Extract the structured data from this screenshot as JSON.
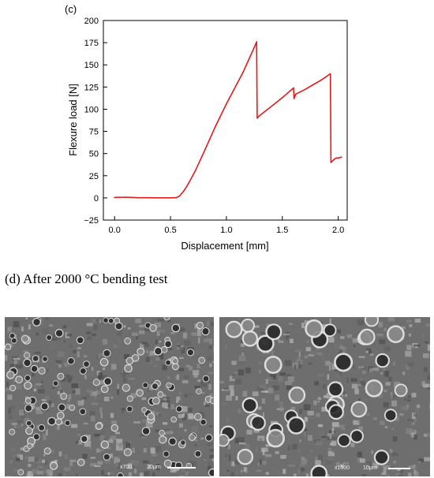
{
  "panel_c": {
    "label": "(c)"
  },
  "panel_d": {
    "caption": "(d) After 2000 °C bending test",
    "images": [
      {
        "magnification": "x700",
        "scale": "20μm"
      },
      {
        "magnification": "x1500",
        "scale": "10μm"
      }
    ]
  },
  "chart_data": {
    "type": "line",
    "title": "",
    "xlabel": "Displacement [mm]",
    "ylabel": "Flexure load [N]",
    "xlim": [
      -0.1,
      2.08
    ],
    "ylim": [
      -25,
      200
    ],
    "xticks": [
      0.0,
      0.5,
      1.0,
      1.5,
      2.0
    ],
    "xtick_labels": [
      "0.0",
      "0.5",
      "1.0",
      "1.5",
      "2.0"
    ],
    "yticks": [
      -25,
      0,
      25,
      50,
      75,
      100,
      125,
      150,
      175,
      200
    ],
    "ytick_labels": [
      "−25",
      "0",
      "25",
      "50",
      "75",
      "100",
      "125",
      "150",
      "175",
      "200"
    ],
    "grid": false,
    "legend": "none",
    "series": [
      {
        "color": "#e31a1c",
        "points": [
          [
            0.0,
            0.5
          ],
          [
            0.1,
            0.8
          ],
          [
            0.2,
            0.3
          ],
          [
            0.3,
            0.2
          ],
          [
            0.4,
            0.1
          ],
          [
            0.5,
            0.1
          ],
          [
            0.55,
            0.3
          ],
          [
            0.58,
            2
          ],
          [
            0.62,
            8
          ],
          [
            0.66,
            16
          ],
          [
            0.72,
            30
          ],
          [
            0.8,
            52
          ],
          [
            0.9,
            80
          ],
          [
            1.0,
            106
          ],
          [
            1.1,
            130
          ],
          [
            1.15,
            142
          ],
          [
            1.2,
            156
          ],
          [
            1.25,
            170
          ],
          [
            1.27,
            176
          ],
          [
            1.275,
            90
          ],
          [
            1.3,
            93
          ],
          [
            1.4,
            103
          ],
          [
            1.5,
            113
          ],
          [
            1.6,
            124
          ],
          [
            1.605,
            112
          ],
          [
            1.62,
            117
          ],
          [
            1.7,
            122
          ],
          [
            1.78,
            128
          ],
          [
            1.85,
            133
          ],
          [
            1.93,
            140
          ],
          [
            1.935,
            40
          ],
          [
            1.96,
            43
          ],
          [
            1.98,
            45
          ],
          [
            2.0,
            45
          ],
          [
            2.03,
            46
          ]
        ]
      }
    ]
  }
}
